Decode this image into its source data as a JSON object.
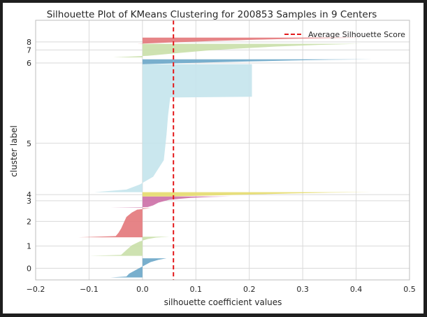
{
  "chart_data": {
    "type": "silhouette",
    "title": "Silhouette Plot of KMeans Clustering for 200853 Samples in 9 Centers",
    "xlabel": "silhouette coefficient values",
    "ylabel": "cluster label",
    "xlim": [
      -0.2,
      0.5
    ],
    "xticks": [
      "−0.2",
      "−0.1",
      "0.0",
      "0.1",
      "0.2",
      "0.3",
      "0.4",
      "0.5"
    ],
    "xtick_values": [
      -0.2,
      -0.1,
      0.0,
      0.1,
      0.2,
      0.3,
      0.4,
      0.5
    ],
    "ylim": [
      0,
      210000
    ],
    "grid": true,
    "average_silhouette_score": 0.058,
    "legend": {
      "placement": "top-right",
      "entries": [
        "Average Silhouette Score"
      ]
    },
    "avg_line_color": "#e31a1c",
    "clusters": [
      {
        "label": "0",
        "y_label": 9400,
        "color": "#6aa6c8",
        "profile": [
          [
            0,
            -0.06
          ],
          [
            0.05,
            -0.03
          ],
          [
            0.2,
            -0.025
          ],
          [
            0.35,
            -0.015
          ],
          [
            0.5,
            -0.005
          ],
          [
            0.65,
            0.005
          ],
          [
            0.8,
            0.015
          ],
          [
            0.92,
            0.03
          ],
          [
            1,
            0.045
          ]
        ],
        "y0": 2000,
        "y1": 17500
      },
      {
        "label": "1",
        "y_label": 27400,
        "color": "#c9dfa8",
        "profile": [
          [
            0,
            -0.1
          ],
          [
            0.05,
            -0.04
          ],
          [
            0.3,
            -0.03
          ],
          [
            0.55,
            -0.02
          ],
          [
            0.75,
            -0.005
          ],
          [
            0.88,
            0.01
          ],
          [
            0.95,
            0.025
          ],
          [
            1,
            0.05
          ]
        ],
        "y0": 19500,
        "y1": 35000
      },
      {
        "label": "2",
        "y_label": 47300,
        "color": "#e3777a",
        "profile": [
          [
            0,
            -0.12
          ],
          [
            0.04,
            -0.05
          ],
          [
            0.15,
            -0.045
          ],
          [
            0.3,
            -0.04
          ],
          [
            0.5,
            -0.035
          ],
          [
            0.7,
            -0.03
          ],
          [
            0.85,
            -0.02
          ],
          [
            0.95,
            -0.01
          ],
          [
            1,
            0.015
          ]
        ],
        "y0": 34500,
        "y1": 58000
      },
      {
        "label": "3",
        "y_label": 64000,
        "color": "#cc6fa6",
        "profile": [
          [
            0,
            -0.06
          ],
          [
            0.05,
            0.01
          ],
          [
            0.2,
            0.02
          ],
          [
            0.45,
            0.03
          ],
          [
            0.7,
            0.05
          ],
          [
            0.88,
            0.09
          ],
          [
            0.96,
            0.13
          ],
          [
            1,
            0.165
          ]
        ],
        "y0": 58500,
        "y1": 67500
      },
      {
        "label": "4",
        "y_label": 69000,
        "color": "#e6db6d",
        "profile": [
          [
            0,
            0.05
          ],
          [
            0.2,
            0.12
          ],
          [
            0.45,
            0.2
          ],
          [
            0.7,
            0.28
          ],
          [
            0.88,
            0.35
          ],
          [
            1,
            0.43
          ]
        ],
        "y0": 67500,
        "y1": 71000
      },
      {
        "label": "5",
        "y_label": 110500,
        "color": "#c4e4ec",
        "profile": [
          [
            0,
            -0.09
          ],
          [
            0.02,
            -0.03
          ],
          [
            0.06,
            -0.005
          ],
          [
            0.12,
            0.02
          ],
          [
            0.25,
            0.04
          ],
          [
            0.45,
            0.045
          ],
          [
            0.6,
            0.048
          ],
          [
            0.74,
            0.052
          ],
          [
            0.745,
            0.205
          ],
          [
            0.99,
            0.205
          ],
          [
            1,
            0.205
          ]
        ],
        "y0": 71000,
        "y1": 174500
      },
      {
        "label": "6",
        "y_label": 175500,
        "color": "#6aa6c8",
        "profile": [
          [
            0,
            0.0
          ],
          [
            0.15,
            0.05
          ],
          [
            0.35,
            0.12
          ],
          [
            0.55,
            0.2
          ],
          [
            0.75,
            0.28
          ],
          [
            0.9,
            0.35
          ],
          [
            1,
            0.43
          ]
        ],
        "y0": 174500,
        "y1": 178500
      },
      {
        "label": "7",
        "y_label": 186000,
        "color": "#c9dfa8",
        "profile": [
          [
            0,
            -0.055
          ],
          [
            0.12,
            0.01
          ],
          [
            0.3,
            0.06
          ],
          [
            0.5,
            0.12
          ],
          [
            0.65,
            0.18
          ],
          [
            0.8,
            0.25
          ],
          [
            0.92,
            0.33
          ],
          [
            1,
            0.41
          ]
        ],
        "y0": 180000,
        "y1": 191000
      },
      {
        "label": "8",
        "y_label": 192500,
        "color": "#e3777a",
        "profile": [
          [
            0,
            -0.01
          ],
          [
            0.2,
            0.05
          ],
          [
            0.45,
            0.13
          ],
          [
            0.65,
            0.21
          ],
          [
            0.8,
            0.28
          ],
          [
            0.92,
            0.35
          ],
          [
            1,
            0.41
          ]
        ],
        "y0": 191000,
        "y1": 196000
      }
    ]
  }
}
